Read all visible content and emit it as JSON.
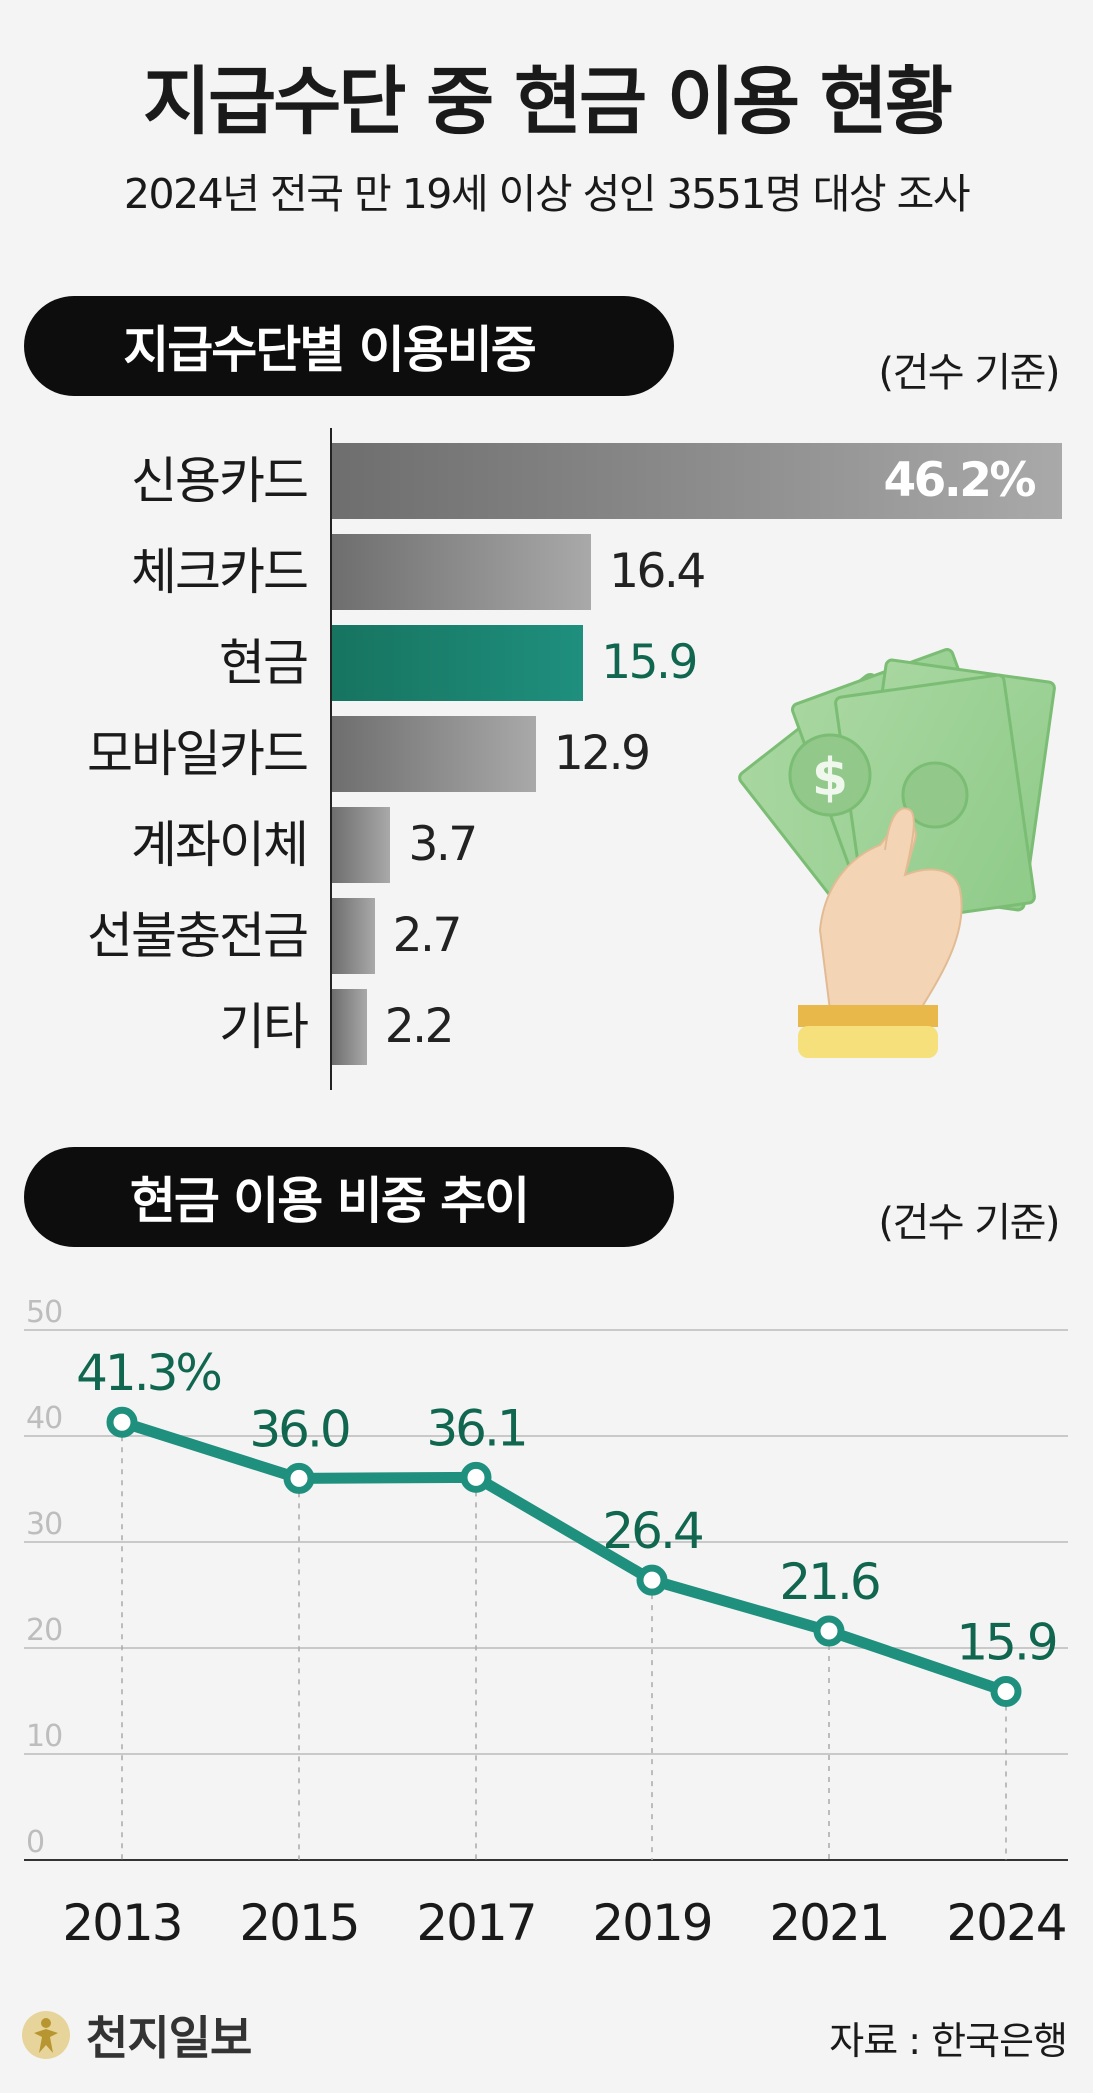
{
  "header": {
    "title": "지급수단 중 현금 이용 현황",
    "subtitle": "2024년 전국 만 19세 이상 성인 3551명 대상 조사"
  },
  "section1": {
    "title": "지급수단별 이용비중",
    "unit_note": "(건수 기준)"
  },
  "section2": {
    "title": "현금 이용 비중 추이",
    "unit_note": "(건수 기준)"
  },
  "footer": {
    "logo": "천지일보",
    "source": "자료 : 한국은행"
  },
  "colors": {
    "highlight": "#1f8f7e",
    "highlight_text": "#11664f",
    "bar_gray_dark": "#6e6e6e",
    "bar_gray_light": "#a9a9a9"
  },
  "chart_data": [
    {
      "type": "bar",
      "orientation": "horizontal",
      "title": "지급수단별 이용비중",
      "unit": "%",
      "categories": [
        "신용카드",
        "체크카드",
        "현금",
        "모바일카드",
        "계좌이체",
        "선불충전금",
        "기타"
      ],
      "values": [
        46.2,
        16.4,
        15.9,
        12.9,
        3.7,
        2.7,
        2.2
      ],
      "value_labels": [
        "46.2%",
        "16.4",
        "15.9",
        "12.9",
        "3.7",
        "2.7",
        "2.2"
      ],
      "highlight": "현금"
    },
    {
      "type": "line",
      "title": "현금 이용 비중 추이",
      "unit": "%",
      "x": [
        "2013",
        "2015",
        "2017",
        "2019",
        "2021",
        "2024"
      ],
      "values": [
        41.3,
        36.0,
        36.1,
        26.4,
        21.6,
        15.9
      ],
      "value_labels": [
        "41.3%",
        "36.0",
        "36.1",
        "26.4",
        "21.6",
        "15.9"
      ],
      "ylim": [
        0,
        50
      ],
      "yticks": [
        "0",
        "10",
        "20",
        "30",
        "40",
        "50"
      ],
      "grid": true
    }
  ]
}
